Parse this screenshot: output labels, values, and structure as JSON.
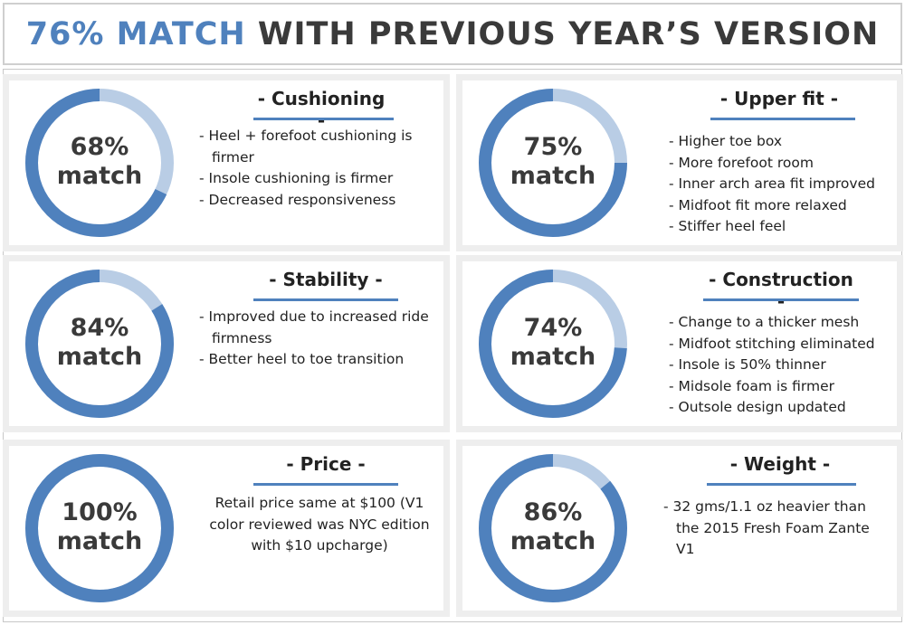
{
  "header": {
    "accent_text": "76% MATCH",
    "rest_text": "WITH PREVIOUS YEAR’S VERSION"
  },
  "colors": {
    "accent": "#4f81bd",
    "ring_light": "#b9cde5",
    "text_dark": "#3a3a3a"
  },
  "cards": [
    {
      "title": "- Cushioning -",
      "percent": 68,
      "pct_label": "68%",
      "match_label": "match",
      "bullets": [
        "Heel + forefoot cushioning is firmer",
        "Insole cushioning is firmer",
        "Decreased responsiveness"
      ]
    },
    {
      "title": "- Upper fit -",
      "percent": 75,
      "pct_label": "75%",
      "match_label": "match",
      "bullets": [
        "Higher toe box",
        "More forefoot room",
        "Inner arch area fit improved",
        "Midfoot fit more relaxed",
        "Stiffer heel feel"
      ]
    },
    {
      "title": "- Stability -",
      "percent": 84,
      "pct_label": "84%",
      "match_label": "match",
      "bullets": [
        "Improved due to increased ride firmness",
        "Better heel to toe transition"
      ]
    },
    {
      "title": "- Construction -",
      "percent": 74,
      "pct_label": "74%",
      "match_label": "match",
      "bullets": [
        "Change to a thicker mesh",
        "Midfoot stitching eliminated",
        "Insole is 50% thinner",
        "Midsole foam is firmer",
        "Outsole design updated"
      ]
    },
    {
      "title": "- Price -",
      "percent": 100,
      "pct_label": "100%",
      "match_label": "match",
      "bullets": [
        " Retail price same at $100 (V1 color reviewed was NYC edition with $10 upcharge)"
      ]
    },
    {
      "title": "- Weight -",
      "percent": 86,
      "pct_label": "86%",
      "match_label": "match",
      "bullets": [
        "32 gms/1.1 oz heavier than the 2015 Fresh Foam Zante V1"
      ]
    }
  ]
}
